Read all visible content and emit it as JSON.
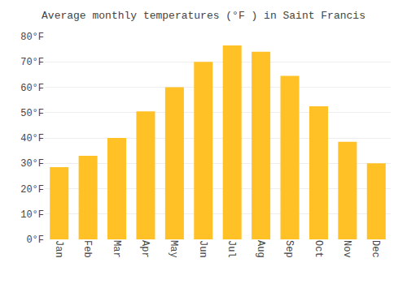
{
  "chart_data": {
    "type": "bar",
    "title": "Average monthly temperatures (°F ) in Saint Francis",
    "categories": [
      "Jan",
      "Feb",
      "Mar",
      "Apr",
      "May",
      "Jun",
      "Jul",
      "Aug",
      "Sep",
      "Oct",
      "Nov",
      "Dec"
    ],
    "values": [
      28.5,
      33.0,
      40.0,
      50.5,
      60.0,
      70.0,
      76.5,
      74.0,
      64.5,
      52.5,
      38.5,
      30.0
    ],
    "color": "#FFC125",
    "ylim": [
      0,
      80
    ],
    "yticks": [
      {
        "value": 0,
        "label": "0°F"
      },
      {
        "value": 10,
        "label": "10°F"
      },
      {
        "value": 20,
        "label": "20°F"
      },
      {
        "value": 30,
        "label": "30°F"
      },
      {
        "value": 40,
        "label": "40°F"
      },
      {
        "value": 50,
        "label": "50°F"
      },
      {
        "value": 60,
        "label": "60°F"
      },
      {
        "value": 70,
        "label": "70°F"
      },
      {
        "value": 80,
        "label": "80°F"
      }
    ],
    "grid": true
  }
}
